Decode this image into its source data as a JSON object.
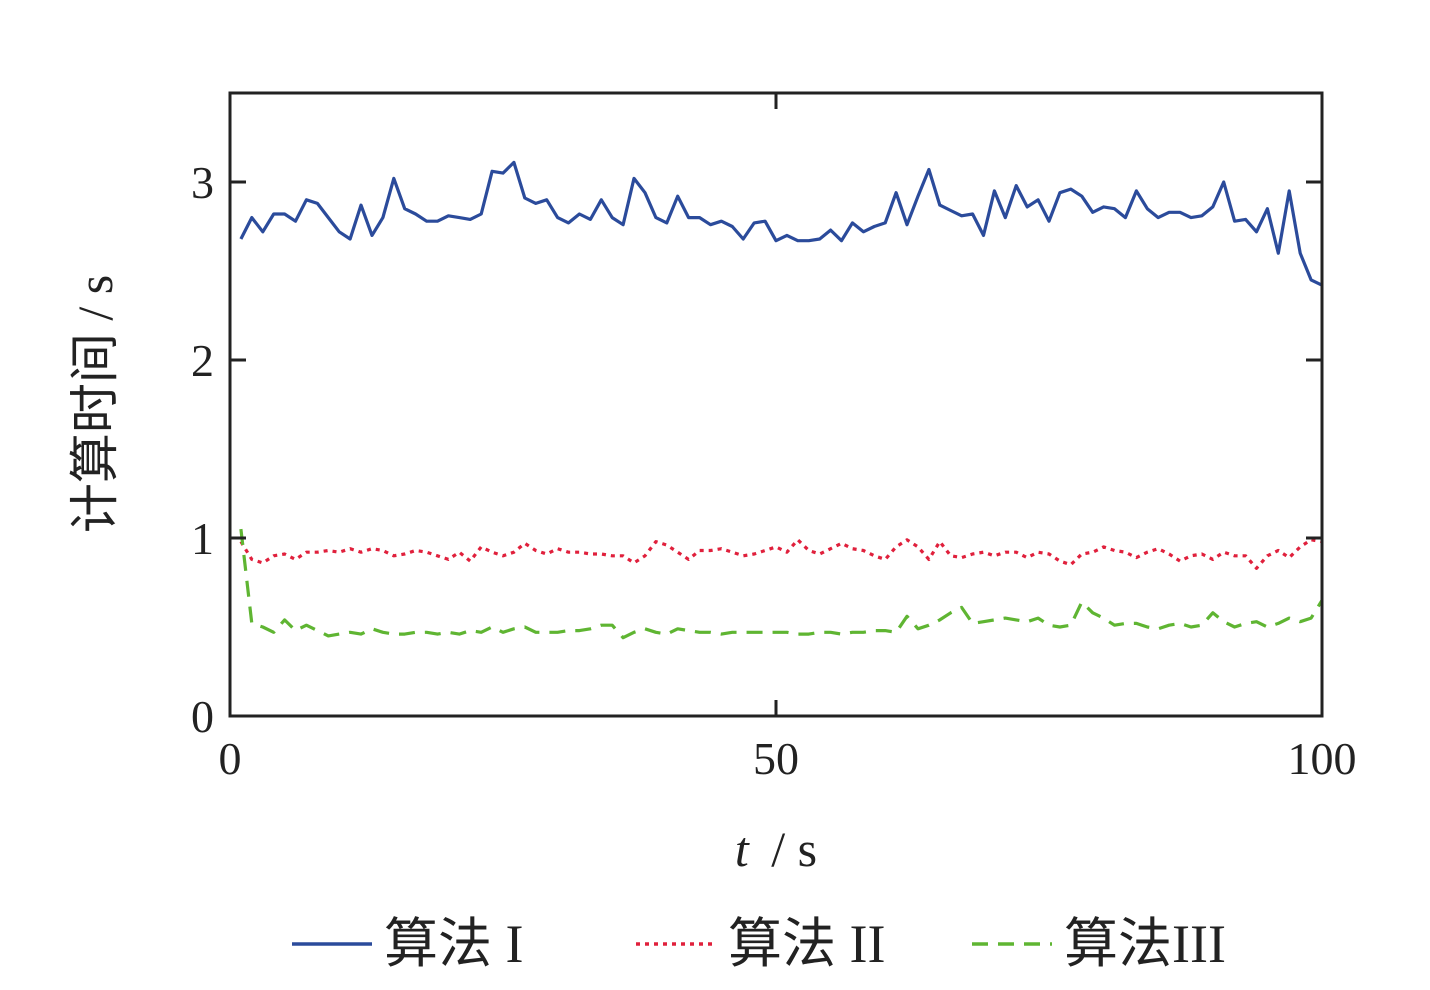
{
  "chart_data": {
    "type": "line",
    "xlabel_var": "t",
    "xlabel_unit": "/ s",
    "ylabel": "计算时间 / s",
    "xlim": [
      0,
      100
    ],
    "ylim": [
      0,
      3.5
    ],
    "xticks": [
      0,
      50,
      100
    ],
    "yticks": [
      0,
      1,
      2,
      3
    ],
    "grid": false,
    "legend_position": "bottom",
    "x": [
      1,
      2,
      3,
      4,
      5,
      6,
      7,
      8,
      9,
      10,
      11,
      12,
      13,
      14,
      15,
      16,
      17,
      18,
      19,
      20,
      21,
      22,
      23,
      24,
      25,
      26,
      27,
      28,
      29,
      30,
      31,
      32,
      33,
      34,
      35,
      36,
      37,
      38,
      39,
      40,
      41,
      42,
      43,
      44,
      45,
      46,
      47,
      48,
      49,
      50,
      51,
      52,
      53,
      54,
      55,
      56,
      57,
      58,
      59,
      60,
      61,
      62,
      63,
      64,
      65,
      66,
      67,
      68,
      69,
      70,
      71,
      72,
      73,
      74,
      75,
      76,
      77,
      78,
      79,
      80,
      81,
      82,
      83,
      84,
      85,
      86,
      87,
      88,
      89,
      90,
      91,
      92,
      93,
      94,
      95,
      96,
      97,
      98,
      99,
      100
    ],
    "series": [
      {
        "name": "算法 I",
        "color": "#2b4b9b",
        "dash": "solid",
        "values": [
          2.68,
          2.8,
          2.72,
          2.82,
          2.82,
          2.78,
          2.9,
          2.88,
          2.8,
          2.72,
          2.68,
          2.87,
          2.7,
          2.8,
          3.02,
          2.85,
          2.82,
          2.78,
          2.78,
          2.81,
          2.8,
          2.79,
          2.82,
          3.06,
          3.05,
          3.11,
          2.91,
          2.88,
          2.9,
          2.8,
          2.77,
          2.82,
          2.79,
          2.9,
          2.8,
          2.76,
          3.02,
          2.94,
          2.8,
          2.77,
          2.92,
          2.8,
          2.8,
          2.76,
          2.78,
          2.75,
          2.68,
          2.77,
          2.78,
          2.67,
          2.7,
          2.67,
          2.67,
          2.68,
          2.73,
          2.67,
          2.77,
          2.72,
          2.75,
          2.77,
          2.94,
          2.76,
          2.92,
          3.07,
          2.87,
          2.84,
          2.81,
          2.82,
          2.7,
          2.95,
          2.8,
          2.98,
          2.86,
          2.9,
          2.78,
          2.94,
          2.96,
          2.92,
          2.83,
          2.86,
          2.85,
          2.8,
          2.95,
          2.85,
          2.8,
          2.83,
          2.83,
          2.8,
          2.81,
          2.86,
          3.0,
          2.78,
          2.79,
          2.72,
          2.85,
          2.6,
          2.95,
          2.6,
          2.45,
          2.42
        ]
      },
      {
        "name": "算法 II",
        "color": "#e0203c",
        "dash": "dotted",
        "values": [
          0.98,
          0.88,
          0.86,
          0.9,
          0.91,
          0.88,
          0.92,
          0.92,
          0.93,
          0.92,
          0.94,
          0.92,
          0.94,
          0.93,
          0.9,
          0.91,
          0.93,
          0.92,
          0.9,
          0.88,
          0.92,
          0.87,
          0.95,
          0.92,
          0.9,
          0.92,
          0.97,
          0.93,
          0.91,
          0.94,
          0.92,
          0.92,
          0.91,
          0.91,
          0.9,
          0.9,
          0.86,
          0.9,
          0.98,
          0.96,
          0.92,
          0.88,
          0.93,
          0.93,
          0.94,
          0.92,
          0.9,
          0.91,
          0.93,
          0.95,
          0.92,
          0.99,
          0.93,
          0.91,
          0.94,
          0.97,
          0.94,
          0.93,
          0.9,
          0.88,
          0.95,
          0.99,
          0.95,
          0.88,
          0.98,
          0.9,
          0.89,
          0.91,
          0.92,
          0.9,
          0.92,
          0.92,
          0.89,
          0.92,
          0.91,
          0.87,
          0.85,
          0.91,
          0.92,
          0.95,
          0.93,
          0.92,
          0.89,
          0.92,
          0.94,
          0.91,
          0.87,
          0.9,
          0.91,
          0.88,
          0.92,
          0.9,
          0.9,
          0.83,
          0.9,
          0.93,
          0.89,
          0.95,
          0.99,
          0.98
        ]
      },
      {
        "name": "算法III",
        "color": "#5fb532",
        "dash": "dashed",
        "values": [
          1.05,
          0.52,
          0.5,
          0.47,
          0.54,
          0.48,
          0.51,
          0.48,
          0.45,
          0.46,
          0.47,
          0.46,
          0.49,
          0.47,
          0.46,
          0.46,
          0.47,
          0.47,
          0.46,
          0.47,
          0.46,
          0.48,
          0.47,
          0.5,
          0.47,
          0.49,
          0.5,
          0.47,
          0.47,
          0.47,
          0.48,
          0.48,
          0.49,
          0.51,
          0.51,
          0.44,
          0.47,
          0.49,
          0.47,
          0.46,
          0.49,
          0.48,
          0.47,
          0.47,
          0.46,
          0.47,
          0.47,
          0.47,
          0.47,
          0.47,
          0.47,
          0.46,
          0.46,
          0.47,
          0.47,
          0.46,
          0.47,
          0.47,
          0.48,
          0.48,
          0.47,
          0.56,
          0.49,
          0.51,
          0.54,
          0.58,
          0.61,
          0.52,
          0.53,
          0.54,
          0.55,
          0.54,
          0.53,
          0.55,
          0.51,
          0.5,
          0.51,
          0.64,
          0.58,
          0.55,
          0.51,
          0.52,
          0.52,
          0.5,
          0.49,
          0.51,
          0.52,
          0.5,
          0.51,
          0.58,
          0.53,
          0.5,
          0.52,
          0.53,
          0.5,
          0.52,
          0.55,
          0.53,
          0.55,
          0.65
        ]
      }
    ]
  }
}
